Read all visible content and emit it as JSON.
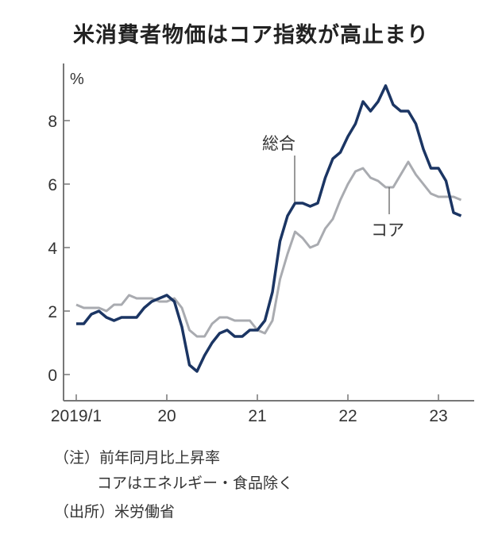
{
  "chart_data": {
    "type": "line",
    "title": "米消費者物価はコア指数が高止まり",
    "ylabel": "%",
    "ylim": [
      -0.8,
      9.8
    ],
    "yticks": [
      "0",
      "2",
      "4",
      "6",
      "8"
    ],
    "ytick_values": [
      0,
      2,
      4,
      6,
      8
    ],
    "xticks": [
      "2019/1",
      "20",
      "21",
      "22",
      "23"
    ],
    "x_start": "2019/1",
    "x_end": "2023/4",
    "grid": false,
    "series": [
      {
        "name": "総合",
        "color": "#1b3563",
        "values": [
          1.6,
          1.6,
          1.9,
          2.0,
          1.8,
          1.7,
          1.8,
          1.8,
          1.8,
          2.1,
          2.3,
          2.4,
          2.5,
          2.3,
          1.5,
          0.3,
          0.1,
          0.6,
          1.0,
          1.3,
          1.4,
          1.2,
          1.2,
          1.4,
          1.4,
          1.7,
          2.6,
          4.2,
          5.0,
          5.4,
          5.4,
          5.3,
          5.4,
          6.2,
          6.8,
          7.0,
          7.5,
          7.9,
          8.6,
          8.3,
          8.6,
          9.1,
          8.5,
          8.3,
          8.3,
          7.9,
          7.1,
          6.5,
          6.5,
          6.1,
          5.1,
          5.0
        ]
      },
      {
        "name": "コア",
        "color": "#a9abb0",
        "values": [
          2.2,
          2.1,
          2.1,
          2.1,
          2.0,
          2.2,
          2.2,
          2.5,
          2.4,
          2.4,
          2.4,
          2.3,
          2.3,
          2.4,
          2.1,
          1.4,
          1.2,
          1.2,
          1.6,
          1.8,
          1.8,
          1.7,
          1.7,
          1.7,
          1.4,
          1.3,
          1.7,
          3.0,
          3.8,
          4.5,
          4.3,
          4.0,
          4.1,
          4.6,
          4.9,
          5.5,
          6.0,
          6.4,
          6.5,
          6.2,
          6.1,
          5.9,
          5.9,
          6.3,
          6.7,
          6.3,
          6.0,
          5.7,
          5.6,
          5.6,
          5.6,
          5.5
        ]
      }
    ],
    "annotations": [
      "総合",
      "コア"
    ]
  },
  "notes": [
    "（注）前年同月比上昇率",
    "コアはエネルギー・食品除く",
    "（出所）米労働省"
  ]
}
